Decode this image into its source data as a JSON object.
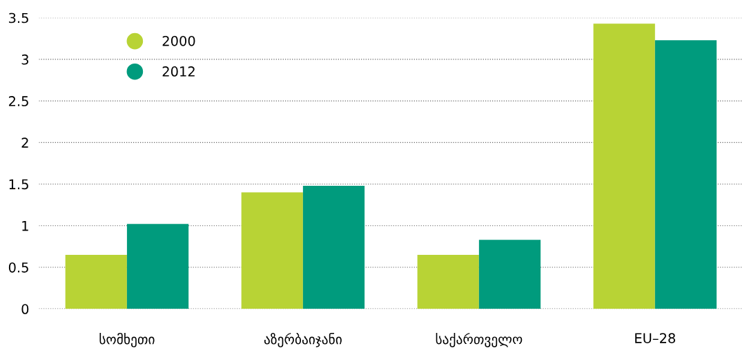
{
  "chart_data": {
    "type": "bar",
    "categories": [
      "სომხეთი",
      "აზერბაიჯანი",
      "საქართველო",
      "EU–28"
    ],
    "series": [
      {
        "name": "2000",
        "color": "#b8d335",
        "values": [
          0.65,
          1.4,
          0.65,
          3.43
        ]
      },
      {
        "name": "2012",
        "color": "#009b7d",
        "values": [
          1.02,
          1.48,
          0.83,
          3.23
        ]
      }
    ],
    "ylim": [
      0,
      3.5
    ],
    "yticks": [
      0,
      0.5,
      1,
      1.5,
      2,
      2.5,
      3,
      3.5
    ],
    "grid": "y",
    "legend": "top left"
  }
}
